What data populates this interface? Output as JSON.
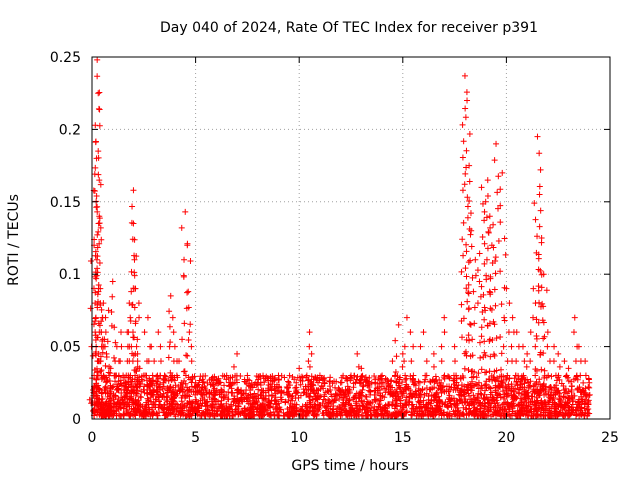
{
  "chart_data": {
    "type": "scatter",
    "title": "Day 040 of 2024, Rate Of TEC Index for receiver p391",
    "xlabel": "GPS time / hours",
    "ylabel": "ROTI / TECUs",
    "xlim": [
      0,
      25
    ],
    "ylim": [
      0,
      0.25
    ],
    "x_ticks": [
      0,
      5,
      10,
      15,
      20,
      25
    ],
    "y_ticks": [
      0,
      0.05,
      0.1,
      0.15,
      0.2,
      0.25
    ],
    "x_tick_labels": [
      "0",
      "5",
      "10",
      "15",
      "20",
      "25"
    ],
    "y_tick_labels": [
      "0",
      "0.05",
      "0.1",
      "0.15",
      "0.2",
      "0.25"
    ],
    "grid": true,
    "marker": "+",
    "series": [
      {
        "name": "ROTI",
        "color": "#ff0000",
        "x": [
          0.05,
          0.1,
          0.15,
          0.2,
          0.25,
          0.3,
          0.3,
          0.35,
          0.35,
          0.4,
          0.45,
          0.5,
          0.55,
          0.6,
          0.7,
          0.8,
          0.9,
          1.0,
          1.1,
          1.2,
          1.3,
          1.4,
          1.5,
          1.6,
          1.7,
          1.8,
          1.9,
          2.0,
          2.0,
          2.05,
          2.1,
          2.2,
          2.3,
          2.5,
          2.7,
          2.8,
          3.0,
          3.2,
          3.5,
          3.8,
          3.9,
          4.0,
          4.2,
          4.5,
          4.6,
          4.7,
          5.0,
          5.5,
          6.0,
          6.5,
          7.0,
          7.5,
          8.0,
          8.5,
          9.0,
          9.5,
          10.0,
          10.5,
          10.6,
          11.0,
          11.2,
          11.5,
          12.0,
          12.5,
          12.8,
          13.0,
          13.5,
          14.0,
          14.5,
          14.8,
          15.0,
          15.2,
          15.5,
          16.0,
          16.5,
          17.0,
          17.5,
          18.0,
          18.1,
          18.2,
          18.3,
          18.5,
          18.7,
          18.8,
          19.0,
          19.1,
          19.2,
          19.3,
          19.5,
          19.8,
          20.0,
          20.3,
          20.5,
          20.8,
          21.0,
          21.3,
          21.5,
          21.6,
          21.7,
          21.8,
          22.0,
          22.3,
          22.5,
          22.8,
          23.0,
          23.3,
          23.5,
          23.8,
          24.0
        ],
        "y": [
          0.02,
          0.12,
          0.08,
          0.05,
          0.248,
          0.225,
          0.185,
          0.165,
          0.14,
          0.09,
          0.06,
          0.07,
          0.08,
          0.055,
          0.045,
          0.075,
          0.035,
          0.095,
          0.03,
          0.05,
          0.04,
          0.06,
          0.03,
          0.025,
          0.06,
          0.08,
          0.05,
          0.158,
          0.135,
          0.11,
          0.09,
          0.045,
          0.035,
          0.03,
          0.07,
          0.05,
          0.04,
          0.06,
          0.03,
          0.085,
          0.07,
          0.05,
          0.04,
          0.143,
          0.12,
          0.06,
          0.025,
          0.02,
          0.025,
          0.03,
          0.045,
          0.03,
          0.025,
          0.02,
          0.03,
          0.025,
          0.035,
          0.06,
          0.045,
          0.03,
          0.025,
          0.02,
          0.025,
          0.03,
          0.045,
          0.035,
          0.025,
          0.03,
          0.04,
          0.065,
          0.045,
          0.07,
          0.05,
          0.06,
          0.045,
          0.07,
          0.05,
          0.237,
          0.22,
          0.175,
          0.13,
          0.11,
          0.095,
          0.16,
          0.15,
          0.165,
          0.14,
          0.12,
          0.19,
          0.17,
          0.09,
          0.07,
          0.06,
          0.05,
          0.045,
          0.09,
          0.195,
          0.155,
          0.125,
          0.1,
          0.06,
          0.05,
          0.045,
          0.04,
          0.035,
          0.07,
          0.05,
          0.04,
          0.025
        ]
      }
    ],
    "background_band": {
      "description": "dense cluster of low ROTI points spanning the full day",
      "x_range": [
        0,
        24
      ],
      "y_typical": [
        0.002,
        0.03
      ]
    }
  }
}
